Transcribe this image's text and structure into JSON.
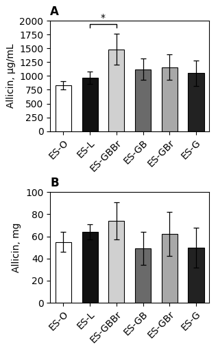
{
  "chart_data": [
    {
      "type": "bar",
      "title": "A",
      "categories": [
        "ES-O",
        "ES-L",
        "ES-GBBr",
        "ES-GB",
        "ES-GBr",
        "ES-G"
      ],
      "values": [
        830,
        970,
        1480,
        1120,
        1160,
        1050
      ],
      "errors": [
        80,
        110,
        280,
        190,
        230,
        230
      ],
      "colors": [
        "#ffffff",
        "#111111",
        "#d0d0d0",
        "#6a6a6a",
        "#a8a8a8",
        "#222222"
      ],
      "ylabel": "Allicin, µg/mL",
      "ylim": [
        0,
        2000
      ],
      "yticks": [
        0,
        250,
        500,
        750,
        1000,
        1250,
        1500,
        1750,
        2000
      ],
      "annotations": [
        {
          "text": "*",
          "x": [
            "ES-L",
            "ES-GBBr"
          ],
          "y": 1940
        }
      ]
    },
    {
      "type": "bar",
      "title": "B",
      "categories": [
        "ES-O",
        "ES-L",
        "ES-GBBr",
        "ES-GB",
        "ES-GBr",
        "ES-G"
      ],
      "values": [
        55,
        64,
        74,
        49,
        62,
        50
      ],
      "errors": [
        9,
        7,
        17,
        15,
        20,
        18
      ],
      "colors": [
        "#ffffff",
        "#111111",
        "#d0d0d0",
        "#6a6a6a",
        "#a8a8a8",
        "#222222"
      ],
      "ylabel": "Allicin, mg",
      "ylim": [
        0,
        100
      ],
      "yticks": [
        0,
        20,
        40,
        60,
        80,
        100
      ]
    }
  ]
}
